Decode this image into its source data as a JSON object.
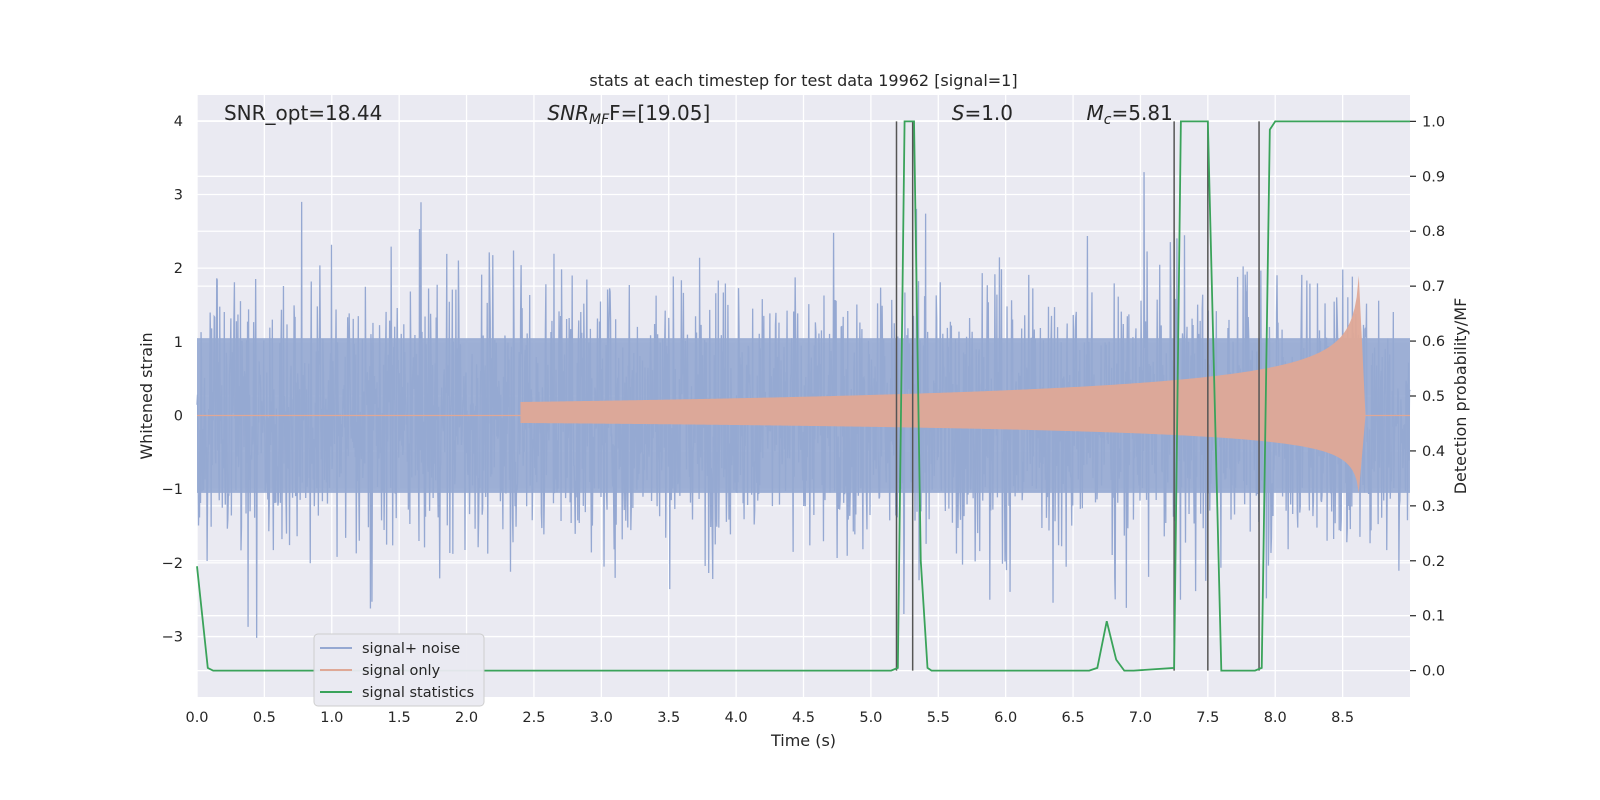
{
  "chart_data": {
    "type": "line",
    "title": "stats at each timestep for test data 19962 [signal=1]",
    "xlabel": "Time (s)",
    "ylabel": "Whitened strain",
    "y2label": "Detection probability/MF",
    "xlim": [
      0.0,
      9.0
    ],
    "ylim": [
      -3.82,
      4.35
    ],
    "y2lim": [
      -0.048,
      1.048
    ],
    "xticks": [
      0.0,
      0.5,
      1.0,
      1.5,
      2.0,
      2.5,
      3.0,
      3.5,
      4.0,
      4.5,
      5.0,
      5.5,
      6.0,
      6.5,
      7.0,
      7.5,
      8.0,
      8.5
    ],
    "xtick_labels": [
      "0.0",
      "0.5",
      "1.0",
      "1.5",
      "2.0",
      "2.5",
      "3.0",
      "3.5",
      "4.0",
      "4.5",
      "5.0",
      "5.5",
      "6.0",
      "6.5",
      "7.0",
      "7.5",
      "8.0",
      "8.5"
    ],
    "yticks": [
      4,
      3,
      2,
      1,
      0,
      -1,
      -2,
      -3
    ],
    "ytick_labels": [
      "4",
      "3",
      "2",
      "1",
      "0",
      "−1",
      "−2",
      "−3"
    ],
    "y2ticks": [
      1.0,
      0.9,
      0.8,
      0.7,
      0.6,
      0.5,
      0.4,
      0.3,
      0.2,
      0.1,
      0.0
    ],
    "y2tick_labels": [
      "1.0",
      "0.9",
      "0.8",
      "0.7",
      "0.6",
      "0.5",
      "0.4",
      "0.3",
      "0.2",
      "0.1",
      "0.0"
    ],
    "grid": true,
    "legend_position": "lower-left",
    "annotations": [
      {
        "main": "SNR_opt=18.44",
        "x": 0.2
      },
      {
        "main": "SNR",
        "sub": "MF",
        "suffix": "F=[19.05]",
        "italic": true,
        "x": 2.6
      },
      {
        "main": "S",
        "suffix": "=1.0",
        "italic": true,
        "x": 5.6
      },
      {
        "main": "M",
        "sub": "c",
        "suffix": "=5.81",
        "italic": true,
        "x": 6.6
      }
    ],
    "series": [
      {
        "name": "signal+ noise",
        "color": "#95a8d2",
        "kind": "noise",
        "typical_abs": 1.8,
        "max_abs": 3.45
      },
      {
        "name": "signal only",
        "color": "#dfa896",
        "kind": "chirp",
        "start_time": 2.4,
        "merger_time": 8.62,
        "peak_amplitude": 1.9
      },
      {
        "name": "signal statistics",
        "color": "#3aa35a",
        "kind": "probability",
        "axis": "right",
        "x": [
          0.0,
          0.08,
          0.12,
          5.15,
          5.2,
          5.25,
          5.28,
          5.32,
          5.37,
          5.42,
          5.45,
          6.62,
          6.68,
          6.75,
          6.82,
          6.88,
          6.95,
          7.25,
          7.3,
          7.5,
          7.6,
          7.85,
          7.9,
          7.96,
          8.0,
          9.0
        ],
        "y": [
          0.19,
          0.005,
          0.0,
          0.0,
          0.005,
          1.0,
          1.0,
          1.0,
          0.2,
          0.005,
          0.0,
          0.0,
          0.005,
          0.09,
          0.02,
          0.0,
          0.0,
          0.005,
          1.0,
          1.0,
          0.0,
          0.0,
          0.005,
          0.985,
          1.0,
          1.0
        ]
      }
    ],
    "vertical_lines": [
      5.19,
      5.31,
      7.25,
      7.5,
      7.88
    ]
  }
}
